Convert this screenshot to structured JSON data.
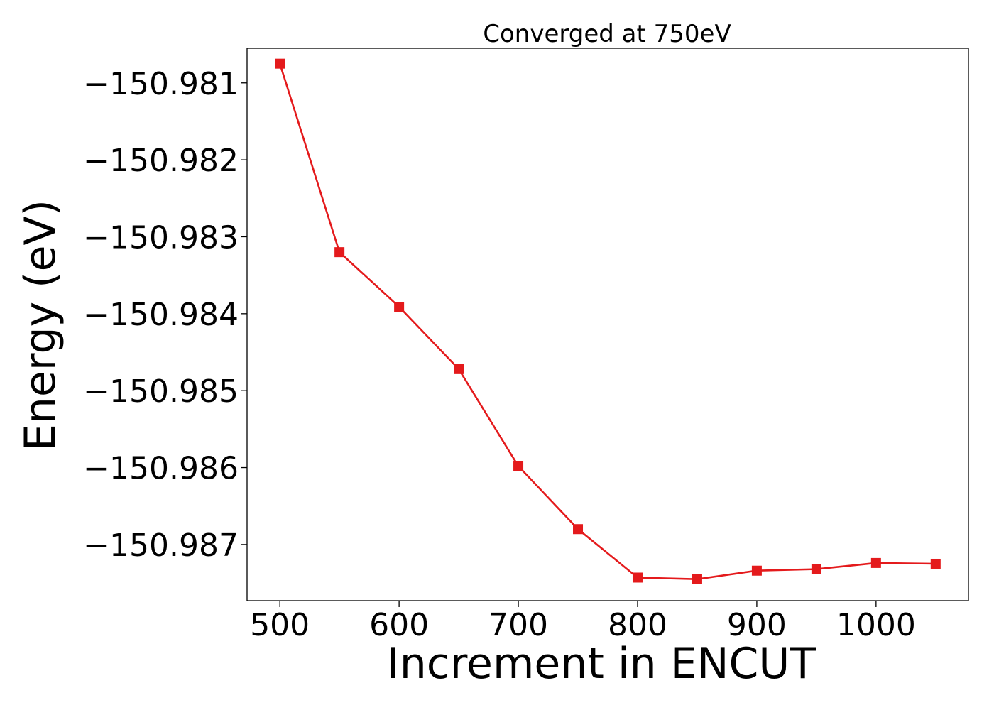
{
  "chart_data": {
    "type": "line",
    "title": "Converged at 750eV",
    "xlabel": "Increment in ENCUT",
    "ylabel": "Energy (eV)",
    "xlim": [
      472.5,
      1077.5
    ],
    "ylim": [
      -150.98773,
      -150.98055
    ],
    "xticks": [
      500,
      600,
      700,
      800,
      900,
      1000
    ],
    "xtick_labels": [
      "500",
      "600",
      "700",
      "800",
      "900",
      "1000"
    ],
    "yticks": [
      -150.981,
      -150.982,
      -150.983,
      -150.984,
      -150.985,
      -150.986,
      -150.987
    ],
    "ytick_labels": [
      "−150.981",
      "−150.982",
      "−150.983",
      "−150.984",
      "−150.985",
      "−150.986",
      "−150.987"
    ],
    "grid": false,
    "series": [
      {
        "color": "#e41a1c",
        "marker": "square",
        "x": [
          500,
          550,
          600,
          650,
          700,
          750,
          800,
          850,
          900,
          950,
          1000,
          1050
        ],
        "y": [
          -150.98075,
          -150.9832,
          -150.98391,
          -150.98472,
          -150.98598,
          -150.9868,
          -150.98743,
          -150.98745,
          -150.98734,
          -150.98732,
          -150.98724,
          -150.98725
        ]
      }
    ]
  }
}
